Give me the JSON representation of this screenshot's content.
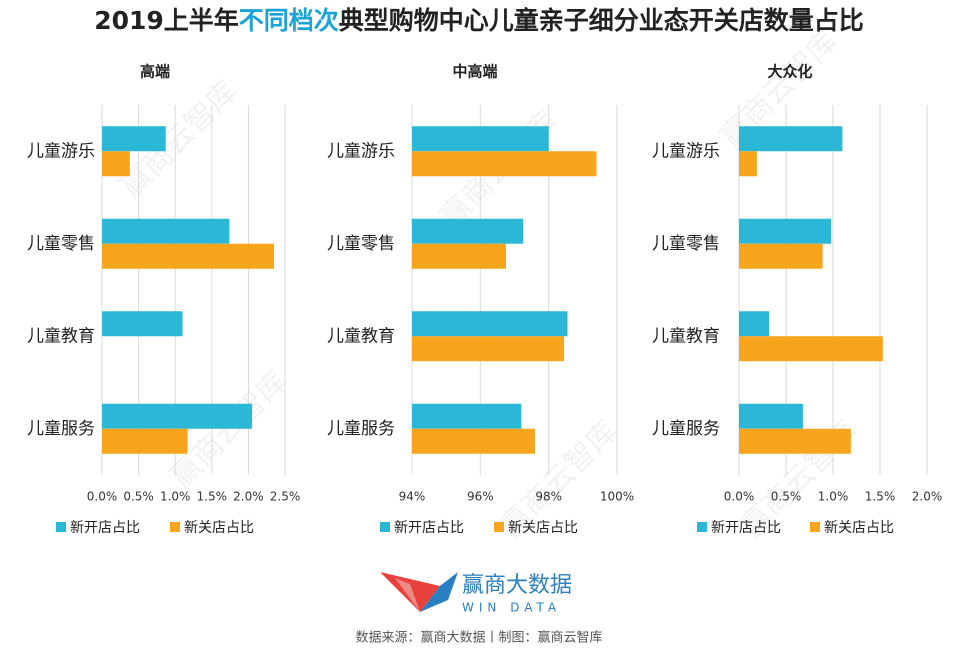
{
  "title_parts": [
    "2019上半年",
    "不同档次",
    "典型购物中心儿童亲子细分业态开关店数量占比"
  ],
  "chart_data": [
    {
      "type": "hbar",
      "title": "高端",
      "categories": [
        "儿童游乐",
        "儿童零售",
        "儿童教育",
        "儿童服务"
      ],
      "series": [
        {
          "name": "新开店占比",
          "color": "#2bb7d6",
          "values": [
            0.87,
            1.74,
            1.1,
            2.05
          ]
        },
        {
          "name": "新关店占比",
          "color": "#f7a51c",
          "values": [
            0.38,
            2.35,
            0,
            1.17
          ]
        }
      ],
      "xlim": [
        0,
        2.5
      ],
      "xticks": [
        {
          "value": 0,
          "label": "0.0%"
        },
        {
          "value": 0.5,
          "label": "0.5%"
        },
        {
          "value": 1,
          "label": "1.0%"
        },
        {
          "value": 1.5,
          "label": "1.5%"
        },
        {
          "value": 2,
          "label": "2.0%"
        },
        {
          "value": 2.5,
          "label": "2.5%"
        }
      ],
      "grid": true
    },
    {
      "type": "hbar",
      "title": "中高端",
      "categories": [
        "儿童游乐",
        "儿童零售",
        "儿童教育",
        "儿童服务"
      ],
      "series": [
        {
          "name": "新开店占比",
          "color": "#2bb7d6",
          "values": [
            98.0,
            97.25,
            98.55,
            97.2
          ]
        },
        {
          "name": "新关店占比",
          "color": "#f7a51c",
          "values": [
            99.4,
            96.75,
            98.45,
            97.6
          ]
        }
      ],
      "xlim": [
        94,
        100
      ],
      "xticks": [
        {
          "value": 94,
          "label": "94%"
        },
        {
          "value": 96,
          "label": "96%"
        },
        {
          "value": 98,
          "label": "98%"
        },
        {
          "value": 100,
          "label": "100%"
        }
      ],
      "grid": true
    },
    {
      "type": "hbar",
      "title": "大众化",
      "categories": [
        "儿童游乐",
        "儿童零售",
        "儿童教育",
        "儿童服务"
      ],
      "series": [
        {
          "name": "新开店占比",
          "color": "#2bb7d6",
          "values": [
            1.1,
            0.98,
            0.32,
            0.68
          ]
        },
        {
          "name": "新关店占比",
          "color": "#f7a51c",
          "values": [
            0.19,
            0.89,
            1.53,
            1.19
          ]
        }
      ],
      "xlim": [
        0,
        2
      ],
      "xticks": [
        {
          "value": 0,
          "label": "0.0%"
        },
        {
          "value": 0.5,
          "label": "0.5%"
        },
        {
          "value": 1,
          "label": "1.0%"
        },
        {
          "value": 1.5,
          "label": "1.5%"
        },
        {
          "value": 2,
          "label": "2.0%"
        }
      ],
      "grid": true
    }
  ],
  "watermark": "赢商云智库",
  "logo": {
    "name": "赢商大数据",
    "tagline": "WIN DATA"
  },
  "source": "数据来源：赢商大数据丨制图：赢商云智库"
}
